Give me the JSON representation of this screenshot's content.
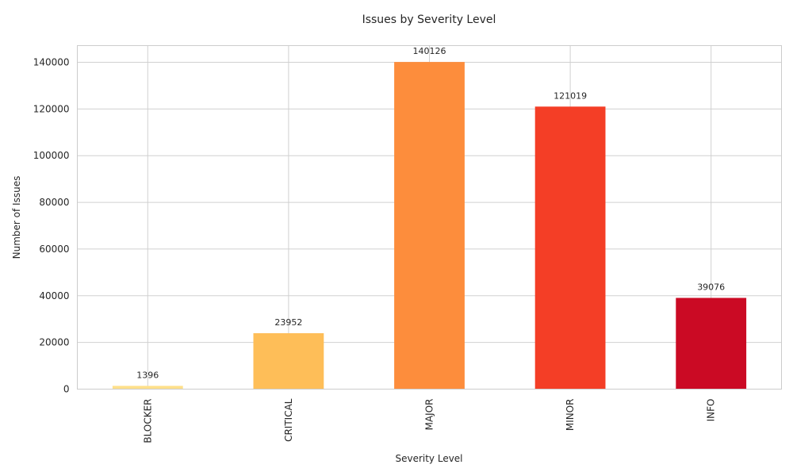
{
  "chart_data": {
    "type": "bar",
    "title": "Issues by Severity Level",
    "xlabel": "Severity Level",
    "ylabel": "Number of Issues",
    "categories": [
      "BLOCKER",
      "CRITICAL",
      "MAJOR",
      "MINOR",
      "INFO"
    ],
    "values": [
      1396,
      23952,
      140126,
      121019,
      39076
    ],
    "value_labels": [
      "1396",
      "23952",
      "140126",
      "121019",
      "39076"
    ],
    "colors": [
      "#ffe08a",
      "#febe58",
      "#fd8d3c",
      "#f43e26",
      "#cb0a24"
    ],
    "ylim": [
      0,
      147132
    ],
    "yticks": [
      0,
      20000,
      40000,
      60000,
      80000,
      100000,
      120000,
      140000
    ],
    "ytick_labels": [
      "0",
      "20000",
      "40000",
      "60000",
      "80000",
      "100000",
      "120000",
      "140000"
    ],
    "grid": true,
    "legend": "none"
  }
}
